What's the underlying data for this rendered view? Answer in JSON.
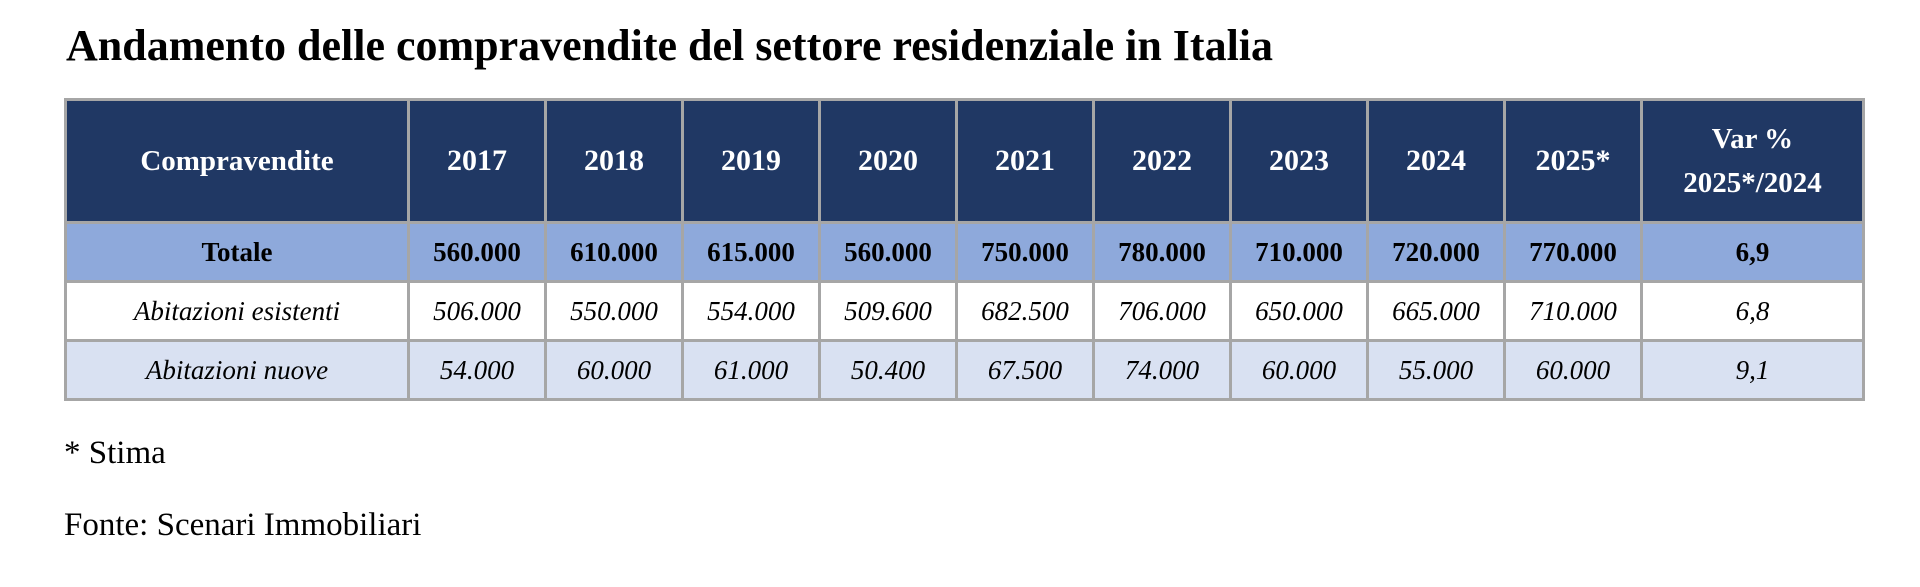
{
  "title": "Andamento delle compravendite del settore residenziale in Italia",
  "table": {
    "header": {
      "label": "Compravendite",
      "years": [
        "2017",
        "2018",
        "2019",
        "2020",
        "2021",
        "2022",
        "2023",
        "2024",
        "2025*"
      ],
      "var_line1": "Var %",
      "var_line2": "2025*/2024"
    },
    "rows": [
      {
        "label": "Totale",
        "values": [
          "560.000",
          "610.000",
          "615.000",
          "560.000",
          "750.000",
          "780.000",
          "710.000",
          "720.000",
          "770.000"
        ],
        "var": "6,9"
      },
      {
        "label": "Abitazioni esistenti",
        "values": [
          "506.000",
          "550.000",
          "554.000",
          "509.600",
          "682.500",
          "706.000",
          "650.000",
          "665.000",
          "710.000"
        ],
        "var": "6,8"
      },
      {
        "label": "Abitazioni nuove",
        "values": [
          "54.000",
          "60.000",
          "61.000",
          "50.400",
          "67.500",
          "74.000",
          "60.000",
          "55.000",
          "60.000"
        ],
        "var": "9,1"
      }
    ]
  },
  "footnote": "* Stima",
  "source": "Fonte: Scenari Immobiliari",
  "colors": {
    "header_bg": "#203864",
    "totale_bg": "#8ea9db",
    "esistenti_bg": "#ffffff",
    "nuove_bg": "#d9e1f2",
    "border": "#a6a6a6"
  }
}
